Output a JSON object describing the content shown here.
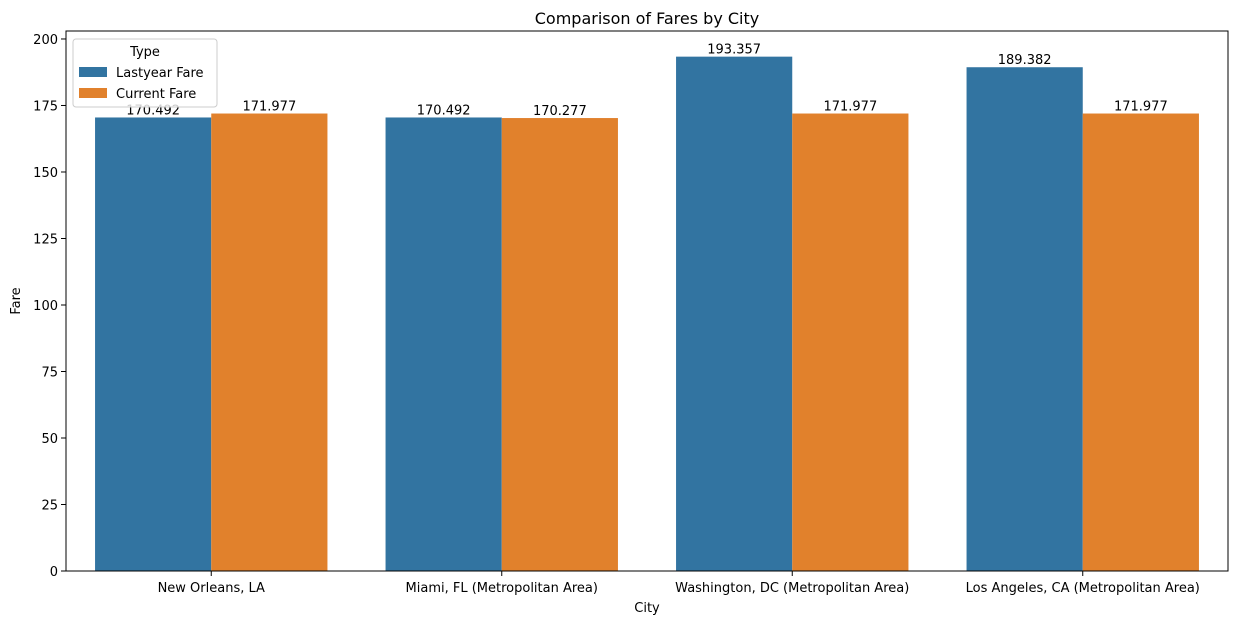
{
  "chart_data": {
    "type": "bar",
    "title": "Comparison of Fares by City",
    "xlabel": "City",
    "ylabel": "Fare",
    "categories": [
      "New Orleans, LA",
      "Miami, FL (Metropolitan Area)",
      "Washington, DC (Metropolitan Area)",
      "Los Angeles, CA (Metropolitan Area)"
    ],
    "series": [
      {
        "name": "Lastyear Fare",
        "values": [
          170.492,
          170.492,
          193.357,
          189.382
        ],
        "labels": [
          "170.492",
          "170.492",
          "193.357",
          "189.382"
        ],
        "color": "#3274a1"
      },
      {
        "name": "Current Fare",
        "values": [
          171.977,
          170.277,
          171.977,
          171.977
        ],
        "labels": [
          "171.977",
          "170.277",
          "171.977",
          "171.977"
        ],
        "color": "#e1812c"
      }
    ],
    "ylim": [
      0,
      203
    ],
    "yticks": [
      0,
      25,
      50,
      75,
      100,
      125,
      150,
      175,
      200
    ],
    "legend": {
      "title": "Type",
      "placement": "top-left"
    },
    "grid": false
  }
}
